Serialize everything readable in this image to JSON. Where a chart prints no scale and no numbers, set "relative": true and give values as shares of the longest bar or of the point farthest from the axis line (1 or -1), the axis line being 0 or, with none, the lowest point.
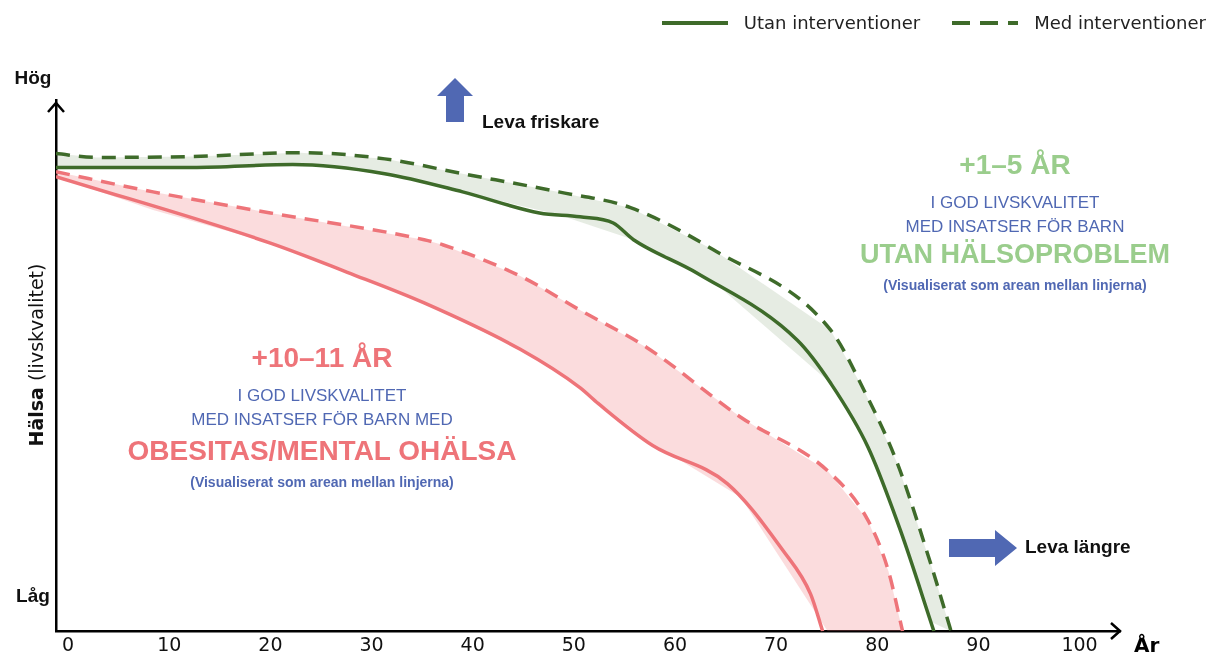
{
  "chart_data": {
    "type": "line",
    "relative": true,
    "xlabel": "År",
    "ylabel": "Hälsa (livskvalitet)",
    "xlim": [
      -1.2,
      104
    ],
    "xticks": [
      0,
      10,
      20,
      30,
      40,
      50,
      60,
      70,
      80,
      90,
      100
    ],
    "legend": "top right",
    "grid": false,
    "marker": "none",
    "series": [
      {
        "name": "Utan interventioner",
        "color": "#3e6b2a",
        "line_style": "solid",
        "x": [
          -1.2,
          12.3,
          22.2,
          31.3,
          39,
          46.6,
          50.6,
          53.9,
          55.9,
          62.2,
          72.1,
          75.4,
          79.1,
          82.3,
          85.6
        ],
        "values": [
          0.969,
          0.969,
          0.975,
          0.956,
          0.918,
          0.874,
          0.866,
          0.853,
          0.818,
          0.748,
          0.608,
          0.518,
          0.384,
          0.21,
          0
        ]
      },
      {
        "name": "Med interventioner",
        "color": "#3e6b2a",
        "line_style": "dashed",
        "x": [
          -1.2,
          2.8,
          12.3,
          23,
          31.3,
          39,
          48.5,
          55.6,
          63.8,
          75.4,
          78.7,
          82,
          85.3,
          87.3
        ],
        "values": [
          0.998,
          0.99,
          0.992,
          1.0,
          0.987,
          0.956,
          0.918,
          0.885,
          0.797,
          0.629,
          0.503,
          0.35,
          0.14,
          0
        ],
        "lower": [
          0.969,
          0.969,
          0.969,
          0.975,
          0.956,
          0.918,
          0.87,
          0.82,
          0.73,
          0.518,
          0.4,
          0.225,
          0.02,
          0
        ],
        "upper": [
          0.998,
          0.99,
          0.992,
          1.0,
          0.987,
          0.956,
          0.918,
          0.885,
          0.797,
          0.629,
          0.503,
          0.35,
          0.14,
          0
        ]
      },
      {
        "color": "#ee7479",
        "line_style": "solid",
        "x": [
          -1.2,
          20,
          27.6,
          35.2,
          44.7,
          50.6,
          52.4,
          57.8,
          65.2,
          70.7,
          73.4,
          74.6
        ],
        "values": [
          0.95,
          0.811,
          0.75,
          0.686,
          0.589,
          0.509,
          0.476,
          0.388,
          0.308,
          0.168,
          0.078,
          0
        ]
      },
      {
        "color": "#ee7479",
        "line_style": "dashed",
        "x": [
          -1.2,
          8.4,
          20,
          35.2,
          37.1,
          44.7,
          50.6,
          57.2,
          66.5,
          75.1,
          79.1,
          81.1,
          82.5
        ],
        "values": [
          0.96,
          0.918,
          0.874,
          0.818,
          0.807,
          0.742,
          0.671,
          0.593,
          0.447,
          0.335,
          0.231,
          0.126,
          0
        ],
        "lower": [
          0.95,
          0.88,
          0.811,
          0.686,
          0.666,
          0.589,
          0.509,
          0.4,
          0.28,
          0,
          0,
          0,
          0
        ],
        "upper": [
          0.96,
          0.918,
          0.874,
          0.818,
          0.807,
          0.742,
          0.671,
          0.593,
          0.447,
          0.335,
          0.231,
          0.126,
          0
        ]
      }
    ],
    "annotations": [
      "+1–5 ÅR",
      "I GOD LIVSKVALITET",
      "MED INSATSER FÖR BARN",
      "UTAN HÄLSOPROBLEM",
      "(Visualiserat som arean mellan linjerna)",
      "+10–11 ÅR",
      "I GOD LIVSKVALITET",
      "MED INSATSER FÖR BARN MED",
      "OBESITAS/MENTAL OHÄLSA",
      "(Visualiserat som arean mellan linjerna)",
      "Leva friskare",
      "Leva längre",
      "Hög",
      "Låg"
    ]
  }
}
